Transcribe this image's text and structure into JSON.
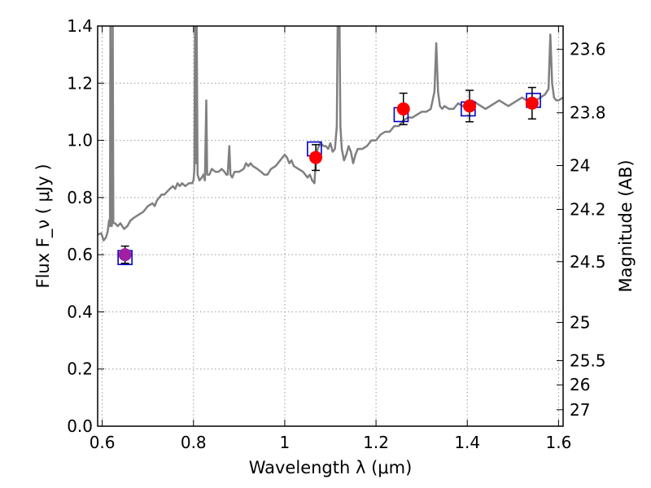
{
  "chart_data": {
    "type": "line",
    "xlabel": "Wavelength  λ (μm)",
    "ylabel": "Flux  F_ν  ( μJy )",
    "ylabel_right": "Magnitude (AB)",
    "xlim": [
      0.59,
      1.61
    ],
    "ylim": [
      0,
      1.4
    ],
    "x_ticks": [
      "0.6",
      "0.8",
      "1",
      "1.2",
      "1.4",
      "1.6"
    ],
    "y_ticks": [
      "0.0",
      "0.2",
      "0.4",
      "0.6",
      "0.8",
      "1.0",
      "1.2",
      "1.4"
    ],
    "right_ticks": [
      {
        "label": "23.6",
        "mag": 23.6
      },
      {
        "label": "23.8",
        "mag": 23.8
      },
      {
        "label": "24",
        "mag": 24.0
      },
      {
        "label": "24.2",
        "mag": 24.2
      },
      {
        "label": "24.5",
        "mag": 24.5
      },
      {
        "label": "25",
        "mag": 25.0
      },
      {
        "label": "25.5",
        "mag": 25.5
      },
      {
        "label": "26",
        "mag": 26.0
      },
      {
        "label": "27",
        "mag": 27.0
      }
    ],
    "grid": true,
    "colors": {
      "spectrum": "#808080",
      "observed": "#ff0000",
      "observed_first": "#a020a0",
      "model": "#0000cc",
      "errorbar": "#000000",
      "grid": "#999999"
    },
    "series": [
      {
        "type": "line",
        "points": [
          [
            0.59,
            0.67
          ],
          [
            0.598,
            0.675
          ],
          [
            0.603,
            0.65
          ],
          [
            0.608,
            0.66
          ],
          [
            0.612,
            0.68
          ],
          [
            0.615,
            0.72
          ],
          [
            0.617,
            0.7
          ],
          [
            0.618,
            1.42
          ],
          [
            0.6195,
            0.72
          ],
          [
            0.621,
            0.7
          ],
          [
            0.623,
            1.42
          ],
          [
            0.6245,
            0.71
          ],
          [
            0.628,
            0.71
          ],
          [
            0.634,
            0.7
          ],
          [
            0.64,
            0.71
          ],
          [
            0.648,
            0.69
          ],
          [
            0.655,
            0.7
          ],
          [
            0.662,
            0.72
          ],
          [
            0.67,
            0.73
          ],
          [
            0.68,
            0.74
          ],
          [
            0.69,
            0.75
          ],
          [
            0.7,
            0.77
          ],
          [
            0.71,
            0.78
          ],
          [
            0.715,
            0.77
          ],
          [
            0.72,
            0.79
          ],
          [
            0.725,
            0.8
          ],
          [
            0.73,
            0.81
          ],
          [
            0.736,
            0.81
          ],
          [
            0.742,
            0.82
          ],
          [
            0.748,
            0.83
          ],
          [
            0.755,
            0.84
          ],
          [
            0.76,
            0.83
          ],
          [
            0.765,
            0.85
          ],
          [
            0.77,
            0.84
          ],
          [
            0.775,
            0.85
          ],
          [
            0.782,
            0.84
          ],
          [
            0.79,
            0.85
          ],
          [
            0.797,
            0.85
          ],
          [
            0.8,
            0.86
          ],
          [
            0.802,
            0.9
          ],
          [
            0.8035,
            1.42
          ],
          [
            0.805,
            0.92
          ],
          [
            0.807,
            1.42
          ],
          [
            0.809,
            0.88
          ],
          [
            0.813,
            0.86
          ],
          [
            0.818,
            0.87
          ],
          [
            0.822,
            0.88
          ],
          [
            0.825,
            0.86
          ],
          [
            0.828,
            1.14
          ],
          [
            0.83,
            0.88
          ],
          [
            0.835,
            0.88
          ],
          [
            0.84,
            0.9
          ],
          [
            0.848,
            0.89
          ],
          [
            0.855,
            0.89
          ],
          [
            0.862,
            0.9
          ],
          [
            0.868,
            0.89
          ],
          [
            0.872,
            0.88
          ],
          [
            0.875,
            0.88
          ],
          [
            0.8785,
            0.98
          ],
          [
            0.881,
            0.88
          ],
          [
            0.885,
            0.87
          ],
          [
            0.89,
            0.89
          ],
          [
            0.9,
            0.89
          ],
          [
            0.91,
            0.9
          ],
          [
            0.915,
            0.92
          ],
          [
            0.92,
            0.91
          ],
          [
            0.925,
            0.92
          ],
          [
            0.93,
            0.91
          ],
          [
            0.94,
            0.9
          ],
          [
            0.948,
            0.89
          ],
          [
            0.955,
            0.88
          ],
          [
            0.962,
            0.88
          ],
          [
            0.97,
            0.9
          ],
          [
            0.98,
            0.91
          ],
          [
            0.99,
            0.93
          ],
          [
            1.0,
            0.95
          ],
          [
            1.005,
            0.94
          ],
          [
            1.01,
            0.92
          ],
          [
            1.015,
            0.93
          ],
          [
            1.02,
            0.91
          ],
          [
            1.03,
            0.9
          ],
          [
            1.04,
            0.89
          ],
          [
            1.05,
            0.87
          ],
          [
            1.055,
            0.88
          ],
          [
            1.06,
            0.86
          ],
          [
            1.065,
            0.85
          ],
          [
            1.068,
            0.93
          ],
          [
            1.072,
            0.97
          ],
          [
            1.078,
            0.99
          ],
          [
            1.085,
            0.98
          ],
          [
            1.09,
            0.98
          ],
          [
            1.095,
            0.97
          ],
          [
            1.1,
            0.99
          ],
          [
            1.105,
            0.96
          ],
          [
            1.11,
            0.97
          ],
          [
            1.114,
            1.05
          ],
          [
            1.116,
            1.42
          ],
          [
            1.12,
            1.42
          ],
          [
            1.122,
            1.05
          ],
          [
            1.125,
            0.97
          ],
          [
            1.13,
            0.93
          ],
          [
            1.135,
            0.95
          ],
          [
            1.14,
            0.98
          ],
          [
            1.145,
            0.96
          ],
          [
            1.15,
            0.92
          ],
          [
            1.155,
            0.95
          ],
          [
            1.16,
            0.97
          ],
          [
            1.17,
            0.97
          ],
          [
            1.18,
            0.98
          ],
          [
            1.19,
            1.0
          ],
          [
            1.2,
            1.0
          ],
          [
            1.21,
            1.02
          ],
          [
            1.22,
            1.03
          ],
          [
            1.23,
            1.03
          ],
          [
            1.24,
            1.05
          ],
          [
            1.25,
            1.05
          ],
          [
            1.26,
            1.07
          ],
          [
            1.27,
            1.08
          ],
          [
            1.28,
            1.08
          ],
          [
            1.29,
            1.09
          ],
          [
            1.3,
            1.1
          ],
          [
            1.31,
            1.1
          ],
          [
            1.32,
            1.11
          ],
          [
            1.328,
            1.17
          ],
          [
            1.332,
            1.34
          ],
          [
            1.336,
            1.17
          ],
          [
            1.34,
            1.12
          ],
          [
            1.345,
            1.11
          ],
          [
            1.35,
            1.12
          ],
          [
            1.36,
            1.11
          ],
          [
            1.37,
            1.11
          ],
          [
            1.38,
            1.13
          ],
          [
            1.39,
            1.12
          ],
          [
            1.4,
            1.13
          ],
          [
            1.41,
            1.14
          ],
          [
            1.42,
            1.13
          ],
          [
            1.43,
            1.12
          ],
          [
            1.44,
            1.11
          ],
          [
            1.45,
            1.12
          ],
          [
            1.46,
            1.13
          ],
          [
            1.47,
            1.14
          ],
          [
            1.48,
            1.13
          ],
          [
            1.49,
            1.12
          ],
          [
            1.5,
            1.13
          ],
          [
            1.51,
            1.14
          ],
          [
            1.52,
            1.15
          ],
          [
            1.53,
            1.14
          ],
          [
            1.54,
            1.13
          ],
          [
            1.55,
            1.14
          ],
          [
            1.56,
            1.15
          ],
          [
            1.57,
            1.16
          ],
          [
            1.578,
            1.18
          ],
          [
            1.582,
            1.37
          ],
          [
            1.586,
            1.2
          ],
          [
            1.59,
            1.15
          ],
          [
            1.595,
            1.14
          ],
          [
            1.6,
            1.14
          ],
          [
            1.61,
            1.15
          ]
        ]
      },
      {
        "type": "scatter",
        "marker": "circle",
        "points": [
          {
            "x": 0.65,
            "y": 0.6,
            "err": 0.03
          },
          {
            "x": 1.068,
            "y": 0.94,
            "err": 0.045
          },
          {
            "x": 1.26,
            "y": 1.11,
            "err": 0.055
          },
          {
            "x": 1.405,
            "y": 1.12,
            "err": 0.055
          },
          {
            "x": 1.542,
            "y": 1.13,
            "err": 0.055
          }
        ]
      },
      {
        "type": "scatter",
        "marker": "square",
        "points": [
          {
            "x": 0.65,
            "y": 0.59
          },
          {
            "x": 1.065,
            "y": 0.97
          },
          {
            "x": 1.255,
            "y": 1.09
          },
          {
            "x": 1.402,
            "y": 1.11
          },
          {
            "x": 1.545,
            "y": 1.14
          }
        ]
      }
    ]
  }
}
